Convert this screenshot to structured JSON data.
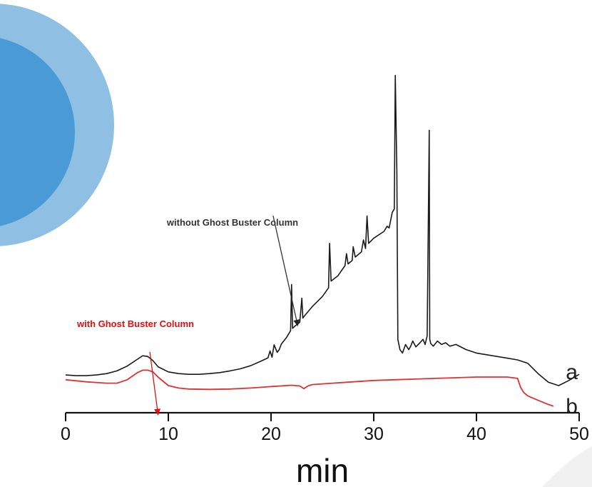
{
  "chart_data": {
    "type": "line",
    "xlabel": "min",
    "ylabel": "",
    "xlim": [
      0,
      50
    ],
    "xticks": [
      0,
      10,
      20,
      30,
      40,
      50
    ],
    "grid": false,
    "colors": {
      "a": "#1a1a1a",
      "b": "#e03030",
      "annotation_red": "#e01010",
      "annotation_dark": "#333333",
      "deco_light": "#8fbfe3",
      "deco_dark": "#4a9ad6"
    },
    "series": [
      {
        "name": "a",
        "color": "#1a1a1a",
        "x": [
          0,
          1,
          2,
          3,
          4,
          5,
          6,
          7,
          7.5,
          8,
          8.5,
          9,
          10,
          11,
          12,
          13,
          14,
          15,
          16,
          17,
          18,
          19,
          19.7,
          19.9,
          20.1,
          20.3,
          20.6,
          20.8,
          21,
          21.5,
          21.9,
          22.0,
          22.1,
          22.3,
          22.8,
          23.0,
          23.1,
          23.3,
          24,
          25,
          25.6,
          25.7,
          25.85,
          26.5,
          27.2,
          27.35,
          27.5,
          27.9,
          28.0,
          28.2,
          28.8,
          29.0,
          29.2,
          29.35,
          29.5,
          30,
          31,
          31.3,
          31.5,
          31.8,
          32.0,
          32.1,
          32.25,
          32.35,
          32.55,
          32.8,
          33.1,
          33.4,
          33.6,
          33.8,
          34.1,
          34.5,
          34.8,
          35.0,
          35.2,
          35.4,
          35.45,
          35.55,
          35.8,
          36.2,
          36.6,
          37,
          37.4,
          38,
          39,
          40,
          41,
          42,
          43,
          44,
          45,
          46,
          47,
          48,
          49,
          50
        ],
        "y": [
          0.6,
          0.4,
          0.4,
          0.6,
          1.0,
          1.8,
          3.2,
          5.2,
          6.2,
          6.0,
          4.8,
          3.0,
          1.5,
          1.0,
          0.8,
          0.8,
          1.0,
          1.3,
          1.8,
          2.4,
          3.3,
          4.6,
          5.6,
          7.6,
          5.8,
          9.4,
          7.2,
          8.0,
          9.6,
          11.5,
          13.5,
          27.0,
          14.2,
          14.8,
          16.0,
          23.0,
          17.2,
          18.0,
          20.5,
          23.5,
          26.0,
          39.0,
          28.0,
          29.5,
          32.5,
          36.0,
          33.0,
          34.0,
          38.0,
          35.0,
          36.5,
          40.0,
          37.5,
          47.0,
          39.0,
          40.5,
          42.5,
          44.0,
          43.5,
          48.0,
          49.0,
          88.0,
          60.0,
          11.0,
          8.0,
          7.0,
          9.5,
          8.0,
          9.0,
          10.5,
          8.8,
          10.0,
          11.0,
          9.5,
          12.0,
          72.0,
          11.0,
          9.8,
          9.0,
          10.5,
          9.5,
          10.0,
          9.0,
          9.5,
          8.0,
          7.0,
          6.5,
          6.0,
          5.5,
          5.0,
          4.0,
          1.0,
          -1.5,
          -2.5,
          -1.0,
          0.8
        ]
      },
      {
        "name": "b",
        "color": "#e03030",
        "x": [
          0,
          2,
          4,
          5,
          6,
          7,
          7.5,
          8,
          8.5,
          9,
          10,
          11,
          12,
          14,
          16,
          18,
          20,
          22,
          22.8,
          23.2,
          23.6,
          24,
          26,
          28,
          30,
          32,
          34,
          36,
          38,
          40,
          42,
          43,
          44,
          44.3,
          44.6,
          45,
          46,
          47,
          47.5
        ],
        "y": [
          -0.8,
          -1.4,
          -1.8,
          -1.8,
          -0.8,
          1.3,
          2.0,
          2.0,
          1.5,
          0.0,
          -2.5,
          -3.2,
          -3.5,
          -3.6,
          -3.5,
          -3.2,
          -2.8,
          -2.4,
          -2.6,
          -3.4,
          -2.6,
          -2.2,
          -1.8,
          -1.4,
          -1.0,
          -0.8,
          -0.6,
          -0.4,
          -0.2,
          0.0,
          0.0,
          0.0,
          -0.4,
          -3.0,
          -4.5,
          -5.5,
          -6.8,
          -8.0,
          -8.5
        ]
      }
    ],
    "trace_labels": [
      {
        "text": "a",
        "x": 48.7,
        "y": 1.5
      },
      {
        "text": "b",
        "x": 48.7,
        "y": -8.5
      }
    ],
    "annotations": [
      {
        "text": "without Ghost Buster Column",
        "color": "#333333",
        "arrow_from": [
          20.2,
          50.0
        ],
        "arrow_to": [
          22.6,
          15.0
        ]
      },
      {
        "text": "with Ghost Buster Column",
        "color": "#e01010",
        "arrow_from": [
          8.2,
          9.0
        ],
        "arrow_to": [
          9.0,
          -11.0
        ]
      }
    ]
  }
}
